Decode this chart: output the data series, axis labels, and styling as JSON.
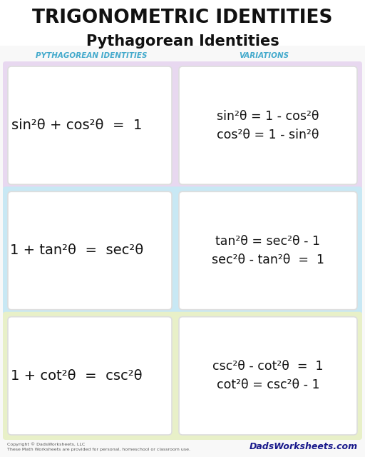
{
  "title": "TRIGONOMETRIC IDENTITIES",
  "subtitle": "Pythagorean Identities",
  "col_header_left": "PYTHAGOREAN IDENTITIES",
  "col_header_right": "VARIATIONS",
  "bg_color": "#f8f8f8",
  "rows": [
    {
      "bg_color": "#e8d8f0",
      "inner_bg": "#ffffff",
      "identity": "sin²θ + cos²θ  =  1",
      "variations": [
        "sin²θ = 1 - cos²θ",
        "cos²θ = 1 - sin²θ"
      ]
    },
    {
      "bg_color": "#c8e8f4",
      "inner_bg": "#ffffff",
      "identity": "1 + tan²θ  =  sec²θ",
      "variations": [
        "tan²θ = sec²θ - 1",
        "sec²θ - tan²θ  =  1"
      ]
    },
    {
      "bg_color": "#e8f0c8",
      "inner_bg": "#ffffff",
      "identity": "1 + cot²θ  =  csc²θ",
      "variations": [
        "csc²θ - cot²θ  =  1",
        "cot²θ = csc²θ - 1"
      ]
    }
  ],
  "footer_left": "Copyright © DadsWorksheets, LLC\nThese Math Worksheets are provided for personal, homeschool or classroom use.",
  "footer_right": "DadsWorksheets.com",
  "header_color": "#44aacc",
  "text_color": "#111111"
}
